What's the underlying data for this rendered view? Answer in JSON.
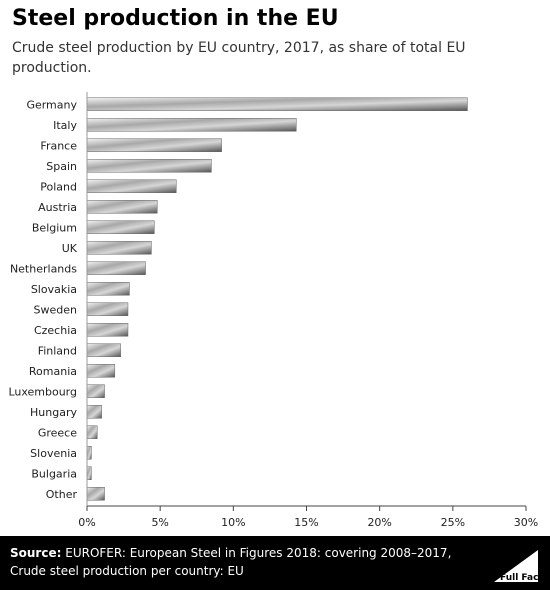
{
  "title": "Steel production in the EU",
  "subtitle": "Crude steel production by EU country, 2017, as share of total EU production.",
  "chart_data": {
    "type": "bar",
    "orientation": "horizontal",
    "categories": [
      "Germany",
      "Italy",
      "France",
      "Spain",
      "Poland",
      "Austria",
      "Belgium",
      "UK",
      "Netherlands",
      "Slovakia",
      "Sweden",
      "Czechia",
      "Finland",
      "Romania",
      "Luxembourg",
      "Hungary",
      "Greece",
      "Slovenia",
      "Bulgaria",
      "Other"
    ],
    "values": [
      26.0,
      14.3,
      9.2,
      8.5,
      6.1,
      4.8,
      4.6,
      4.4,
      4.0,
      2.9,
      2.8,
      2.8,
      2.3,
      1.9,
      1.2,
      1.0,
      0.7,
      0.3,
      0.3,
      1.2
    ],
    "xlim": [
      0,
      30
    ],
    "ticks": [
      "0%",
      "5%",
      "10%",
      "15%",
      "20%",
      "25%",
      "30%"
    ],
    "xlabel": "",
    "ylabel": "",
    "grid": false,
    "bar_color": "#777777"
  },
  "footer": {
    "source_label": "Source:",
    "source_text": "EUROFER: European Steel in Figures 2018: covering 2008–2017, Crude steel production per country: EU",
    "logo_text": "Full Fact"
  }
}
